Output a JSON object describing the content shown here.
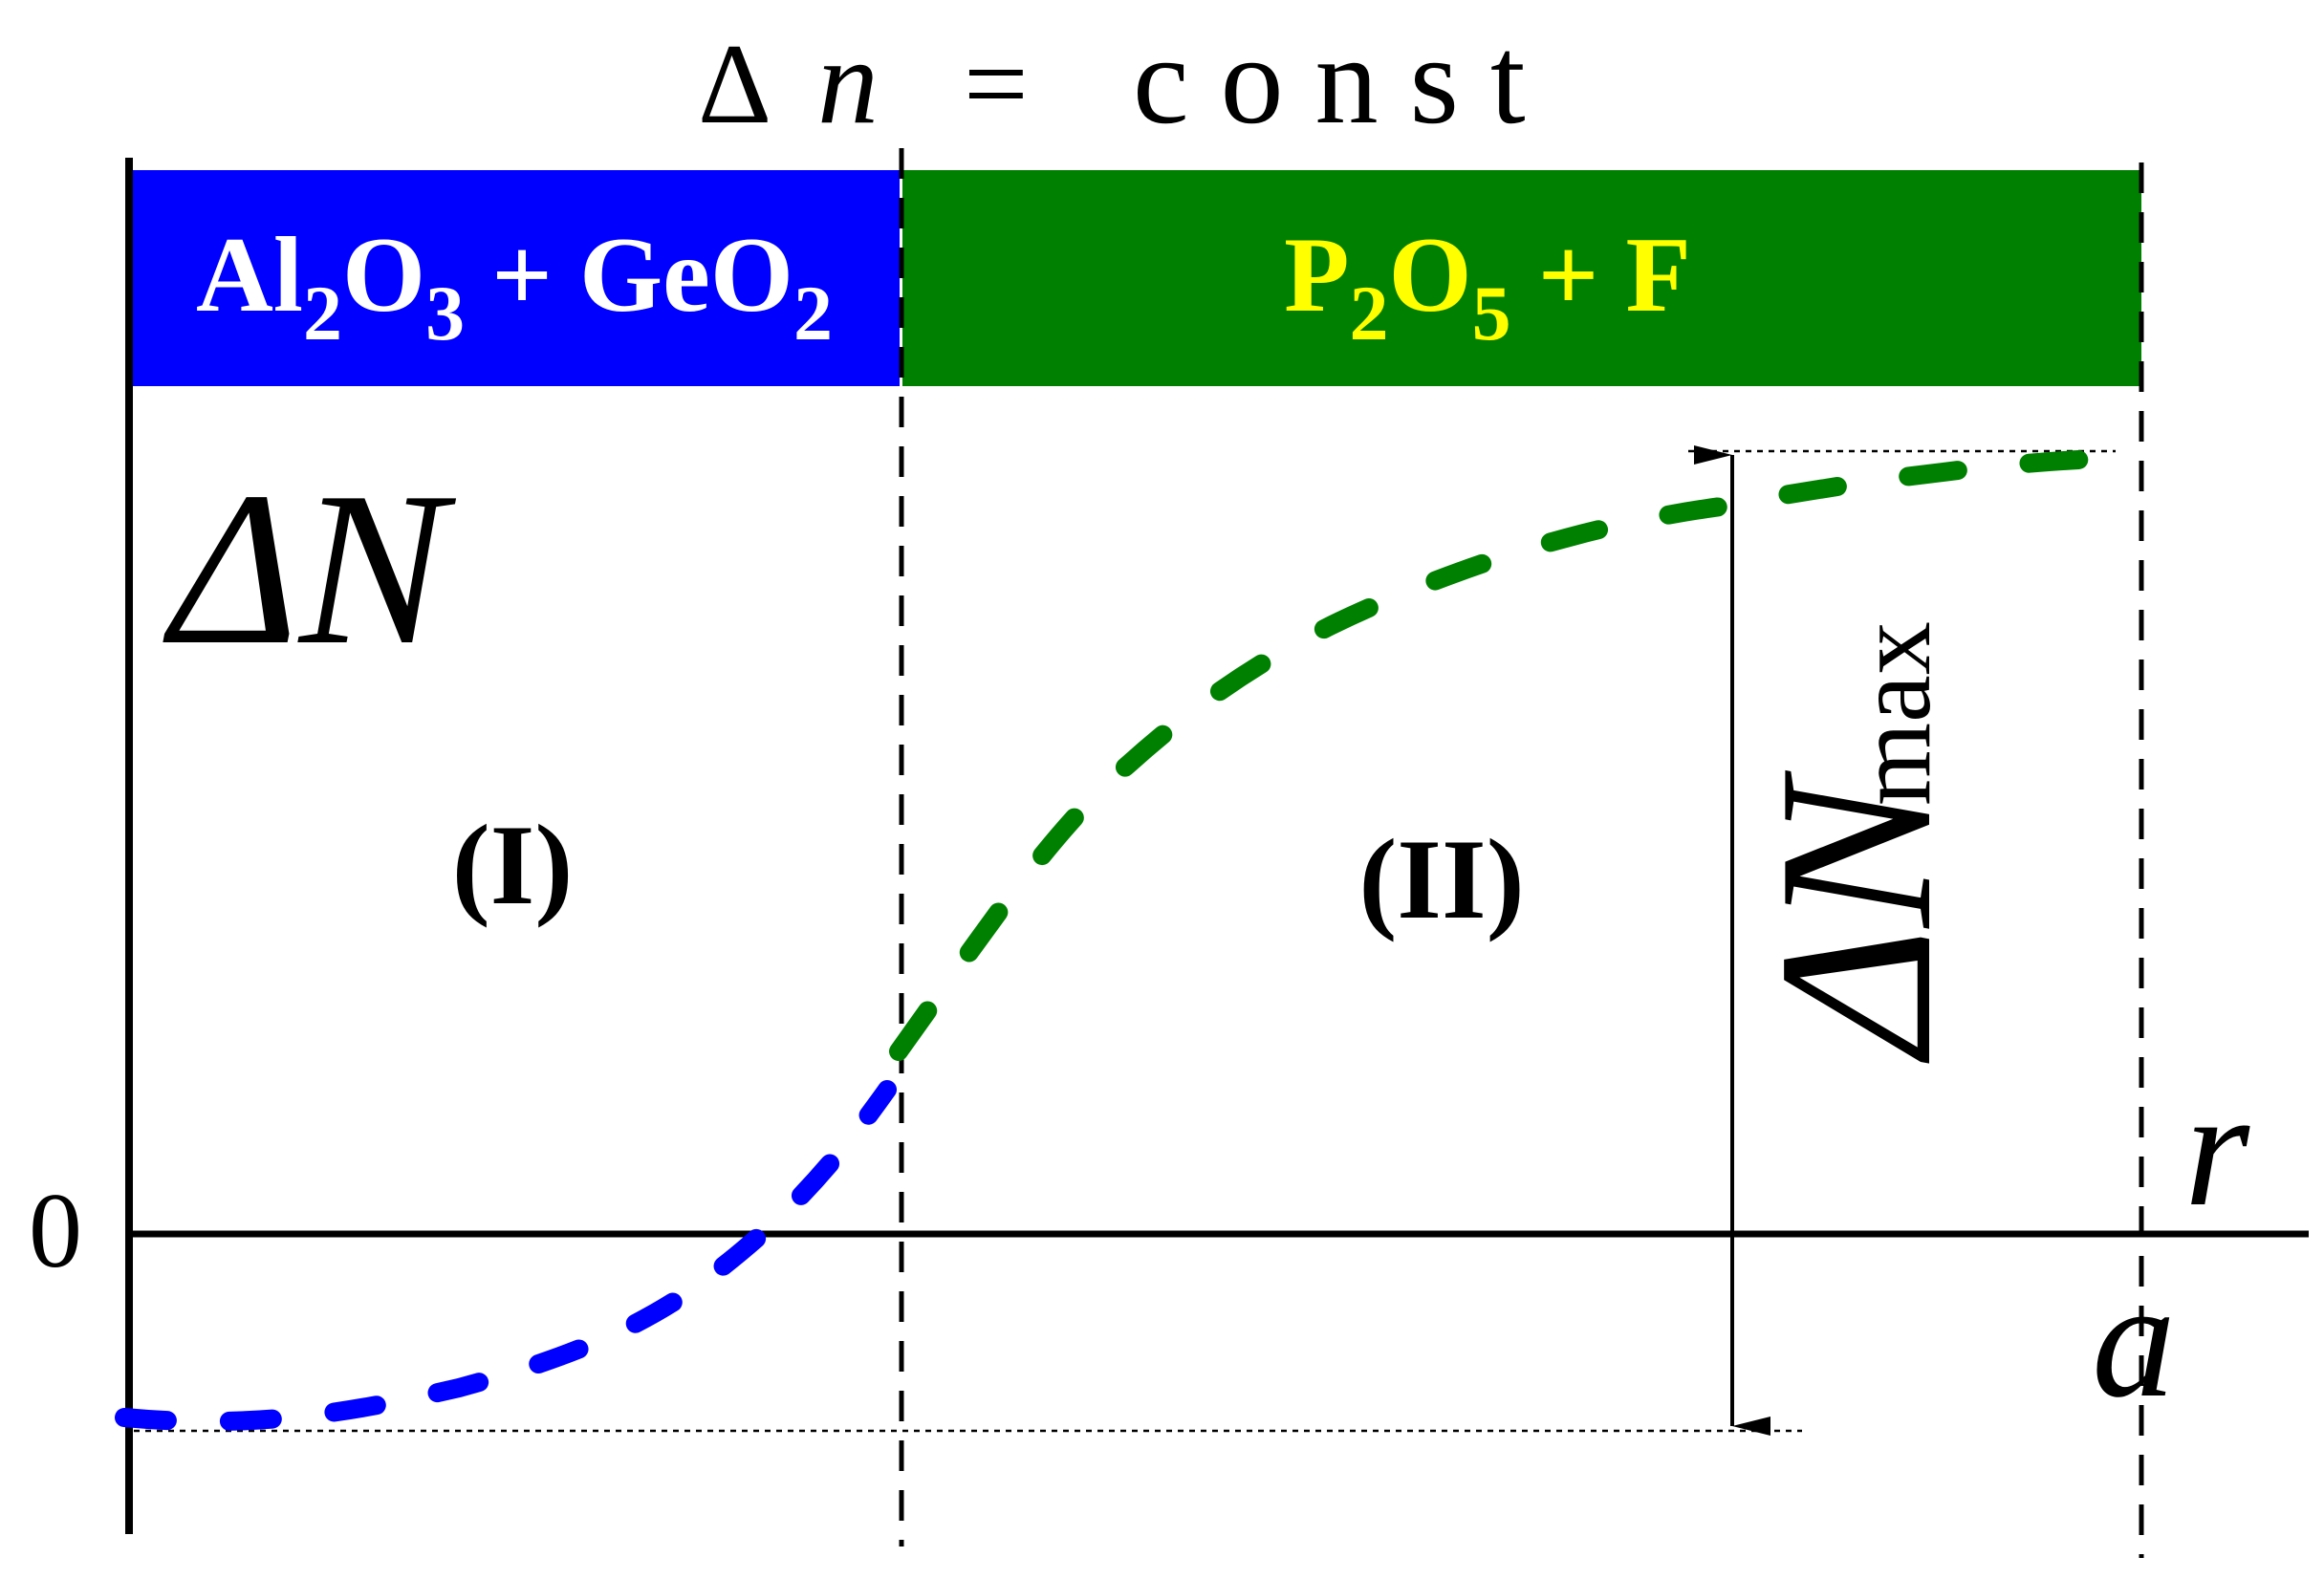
{
  "header": {
    "delta_symbol": "Δ",
    "n_symbol": "n",
    "equals": "=",
    "const_word": "c o n s t"
  },
  "regions": {
    "left_bar": {
      "color": "#0000ff",
      "text_color": "#ffffff",
      "formula": [
        {
          "t": "Al",
          "sub": false
        },
        {
          "t": "2",
          "sub": true
        },
        {
          "t": "O",
          "sub": false
        },
        {
          "t": "3",
          "sub": true
        },
        {
          "t": " + GeO",
          "sub": false
        },
        {
          "t": "2",
          "sub": true
        }
      ]
    },
    "right_bar": {
      "color": "#008000",
      "text_color": "#ffff00",
      "formula": [
        {
          "t": "P",
          "sub": false
        },
        {
          "t": "2",
          "sub": true
        },
        {
          "t": "O",
          "sub": false
        },
        {
          "t": "5",
          "sub": true
        },
        {
          "t": " + F",
          "sub": false
        }
      ]
    },
    "label_I": "(I)",
    "label_II": "(II)"
  },
  "axes": {
    "y_label": "ΔN",
    "zero_label": "0",
    "x_label": "r",
    "a_label": "a"
  },
  "annotation": {
    "main": "ΔN",
    "subscript": "max"
  },
  "curves": {
    "blue_color": "#0000ff",
    "green_color": "#008000"
  }
}
